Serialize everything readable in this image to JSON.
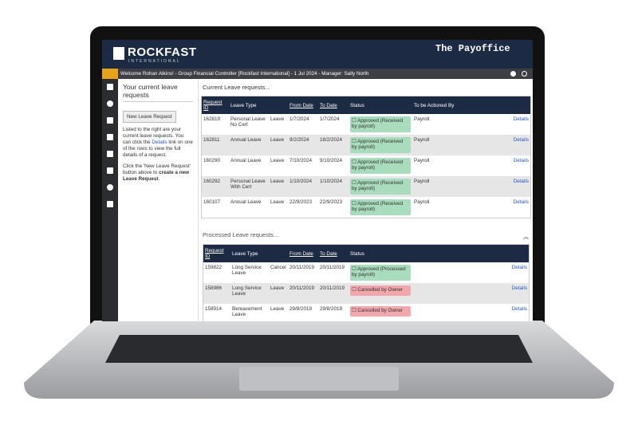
{
  "header": {
    "logo": "ROCKFAST",
    "logo_sub": "INTERNATIONAL",
    "brand": "The Payoffice"
  },
  "topbar": {
    "welcome": "Welcome Rohan Atkins! - Group Financial Controller  [Rockfast International]  - 1 Jul 2024 - Manager: Sally North"
  },
  "sidebar": {
    "title": "Your current leave requests",
    "button": "New Leave Request",
    "help_pre": "Listed to the right are your current leave requests. You can click the",
    "help_link": "Details",
    "help_post": "link on one of the rows to view the full details of a request.",
    "help2_pre": "Click the 'New Leave Request' button above to",
    "help2_bold": "create a new Leave Request",
    "help2_post": "."
  },
  "current": {
    "title": "Current Leave requests...",
    "columns": [
      "Request ID",
      "Leave Type",
      "From Date",
      "To Date",
      "Status",
      "To be Actioned By"
    ],
    "rows": [
      {
        "cells": [
          "162819",
          "Personal Leave No Cert",
          "Leave",
          "1/7/2024",
          "1/7/2024",
          "Approved (Received by payroll)",
          "Payroll",
          "Details"
        ],
        "status_color": "#a8dcbc"
      },
      {
        "cells": [
          "162811",
          "Annual Leave",
          "Leave",
          "9/2/2024",
          "18/2/2024",
          "Approved (Received by payroll)",
          "Payroll",
          "Details"
        ],
        "status_color": "#a8dcbc"
      },
      {
        "cells": [
          "160290",
          "Annual Leave",
          "Leave",
          "7/10/2024",
          "9/10/2024",
          "Approved (Received by payroll)",
          "Payroll",
          "Details"
        ],
        "status_color": "#a8dcbc"
      },
      {
        "cells": [
          "160292",
          "Personal Leave With Cert",
          "Leave",
          "1/10/2024",
          "1/10/2024",
          "Approved (Received by payroll)",
          "Payroll",
          "Details"
        ],
        "status_color": "#a8dcbc"
      },
      {
        "cells": [
          "160107",
          "Annual Leave",
          "Leave",
          "22/9/2023",
          "22/9/2023",
          "Approved (Received by payroll)",
          "Payroll",
          "Details"
        ],
        "status_color": "#a8dcbc"
      }
    ]
  },
  "processed": {
    "title": "Processed Leave requests...",
    "columns": [
      "Request ID",
      "Leave Type",
      "From Date",
      "To Date",
      "Status"
    ],
    "rows": [
      {
        "cells": [
          "159822",
          "Long Service Leave",
          "Cancel",
          "20/11/2019",
          "20/11/2019",
          "Approved (Processed by payroll)",
          "Details"
        ],
        "status_color": "#a8dcbc"
      },
      {
        "cells": [
          "158986",
          "Long Service Leave",
          "Leave",
          "20/11/2019",
          "20/11/2019",
          "Cancelled by Owner",
          "Details"
        ],
        "status_color": "#f2a7ad"
      },
      {
        "cells": [
          "158914",
          "Bereavement Leave",
          "Leave",
          "29/8/2019",
          "29/8/2019",
          "Cancelled by Owner",
          "Details"
        ],
        "status_color": "#f2a7ad"
      }
    ]
  }
}
